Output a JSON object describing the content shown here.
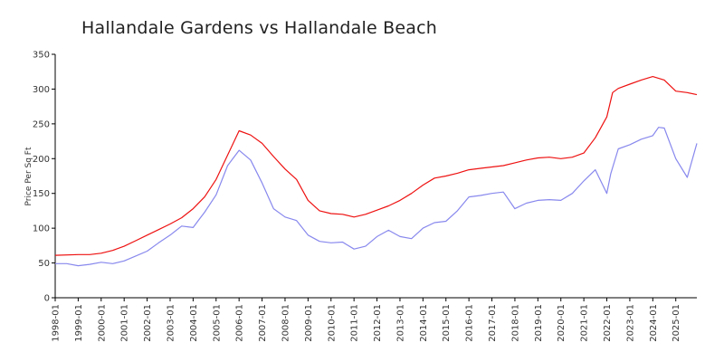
{
  "chart_data": {
    "type": "line",
    "title": "Hallandale Gardens vs Hallandale Beach",
    "xlabel": "",
    "ylabel": "Price Per Sq Ft",
    "ylim": [
      0,
      350
    ],
    "y_ticks": [
      0,
      50,
      100,
      150,
      200,
      250,
      300,
      350
    ],
    "x_range": [
      "1998-01",
      "2025-12"
    ],
    "x_ticks": [
      "1998-01",
      "1999-01",
      "2000-01",
      "2001-01",
      "2002-01",
      "2003-01",
      "2004-01",
      "2005-01",
      "2006-01",
      "2007-01",
      "2008-01",
      "2009-01",
      "2010-01",
      "2011-01",
      "2012-01",
      "2013-01",
      "2014-01",
      "2015-01",
      "2016-01",
      "2017-01",
      "2018-01",
      "2019-01",
      "2020-01",
      "2021-01",
      "2022-01",
      "2023-01",
      "2024-01",
      "2025-01"
    ],
    "grid": false,
    "legend": "none",
    "series": [
      {
        "color": "#ee1111",
        "points": [
          [
            "1998-01",
            61
          ],
          [
            "1999-01",
            62
          ],
          [
            "1999-07",
            62
          ],
          [
            "2000-01",
            64
          ],
          [
            "2000-07",
            68
          ],
          [
            "2001-01",
            74
          ],
          [
            "2001-07",
            82
          ],
          [
            "2002-01",
            90
          ],
          [
            "2002-07",
            98
          ],
          [
            "2003-01",
            106
          ],
          [
            "2003-07",
            115
          ],
          [
            "2004-01",
            128
          ],
          [
            "2004-07",
            145
          ],
          [
            "2005-01",
            170
          ],
          [
            "2005-07",
            205
          ],
          [
            "2006-01",
            240
          ],
          [
            "2006-07",
            234
          ],
          [
            "2007-01",
            222
          ],
          [
            "2007-07",
            203
          ],
          [
            "2008-01",
            185
          ],
          [
            "2008-07",
            170
          ],
          [
            "2009-01",
            140
          ],
          [
            "2009-07",
            125
          ],
          [
            "2010-01",
            121
          ],
          [
            "2010-07",
            120
          ],
          [
            "2011-01",
            116
          ],
          [
            "2011-07",
            120
          ],
          [
            "2012-01",
            126
          ],
          [
            "2012-07",
            132
          ],
          [
            "2013-01",
            140
          ],
          [
            "2013-07",
            150
          ],
          [
            "2014-01",
            162
          ],
          [
            "2014-07",
            172
          ],
          [
            "2015-01",
            175
          ],
          [
            "2015-07",
            179
          ],
          [
            "2016-01",
            184
          ],
          [
            "2016-07",
            186
          ],
          [
            "2017-01",
            188
          ],
          [
            "2017-07",
            190
          ],
          [
            "2018-01",
            194
          ],
          [
            "2018-07",
            198
          ],
          [
            "2019-01",
            201
          ],
          [
            "2019-07",
            202
          ],
          [
            "2020-01",
            200
          ],
          [
            "2020-07",
            202
          ],
          [
            "2021-01",
            208
          ],
          [
            "2021-07",
            230
          ],
          [
            "2022-01",
            260
          ],
          [
            "2022-04",
            295
          ],
          [
            "2022-07",
            301
          ],
          [
            "2023-01",
            307
          ],
          [
            "2023-07",
            313
          ],
          [
            "2024-01",
            318
          ],
          [
            "2024-07",
            313
          ],
          [
            "2025-01",
            297
          ],
          [
            "2025-07",
            295
          ],
          [
            "2025-12",
            292
          ]
        ]
      },
      {
        "color": "#8888ee",
        "points": [
          [
            "1998-01",
            49
          ],
          [
            "1998-07",
            49
          ],
          [
            "1999-01",
            46
          ],
          [
            "1999-07",
            48
          ],
          [
            "2000-01",
            51
          ],
          [
            "2000-07",
            49
          ],
          [
            "2001-01",
            53
          ],
          [
            "2001-07",
            60
          ],
          [
            "2002-01",
            67
          ],
          [
            "2002-07",
            79
          ],
          [
            "2003-01",
            90
          ],
          [
            "2003-07",
            103
          ],
          [
            "2004-01",
            101
          ],
          [
            "2004-04",
            112
          ],
          [
            "2004-07",
            123
          ],
          [
            "2005-01",
            148
          ],
          [
            "2005-07",
            190
          ],
          [
            "2006-01",
            212
          ],
          [
            "2006-07",
            198
          ],
          [
            "2007-01",
            165
          ],
          [
            "2007-07",
            128
          ],
          [
            "2008-01",
            116
          ],
          [
            "2008-07",
            111
          ],
          [
            "2009-01",
            90
          ],
          [
            "2009-07",
            81
          ],
          [
            "2010-01",
            79
          ],
          [
            "2010-07",
            80
          ],
          [
            "2011-01",
            70
          ],
          [
            "2011-07",
            74
          ],
          [
            "2012-01",
            88
          ],
          [
            "2012-07",
            97
          ],
          [
            "2013-01",
            88
          ],
          [
            "2013-07",
            85
          ],
          [
            "2014-01",
            100
          ],
          [
            "2014-07",
            108
          ],
          [
            "2015-01",
            110
          ],
          [
            "2015-07",
            125
          ],
          [
            "2016-01",
            145
          ],
          [
            "2016-07",
            147
          ],
          [
            "2017-01",
            150
          ],
          [
            "2017-07",
            152
          ],
          [
            "2018-01",
            128
          ],
          [
            "2018-07",
            136
          ],
          [
            "2019-01",
            140
          ],
          [
            "2019-07",
            141
          ],
          [
            "2020-01",
            140
          ],
          [
            "2020-07",
            150
          ],
          [
            "2021-01",
            168
          ],
          [
            "2021-07",
            184
          ],
          [
            "2022-01",
            150
          ],
          [
            "2022-03",
            178
          ],
          [
            "2022-07",
            214
          ],
          [
            "2023-01",
            220
          ],
          [
            "2023-07",
            228
          ],
          [
            "2024-01",
            233
          ],
          [
            "2024-04",
            245
          ],
          [
            "2024-07",
            244
          ],
          [
            "2025-01",
            200
          ],
          [
            "2025-07",
            173
          ],
          [
            "2025-12",
            222
          ]
        ]
      }
    ]
  }
}
